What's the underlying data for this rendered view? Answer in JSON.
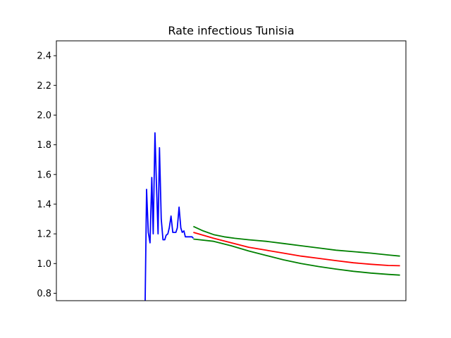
{
  "chart_data": {
    "type": "line",
    "title": "Rate infectious Tunisia",
    "xlabel": "",
    "ylabel": "",
    "xlim": [
      0,
      100
    ],
    "ylim": [
      0.75,
      2.5
    ],
    "yticks": [
      "0.8",
      "1.0",
      "1.2",
      "1.4",
      "1.6",
      "1.8",
      "2.0",
      "2.2",
      "2.4"
    ],
    "ytick_values": [
      0.8,
      1.0,
      1.2,
      1.4,
      1.6,
      1.8,
      2.0,
      2.2,
      2.4
    ],
    "x_ticks_visible": false,
    "grid": false,
    "series": [
      {
        "color": "#0000ff",
        "x": [
          25.4,
          25.8,
          26.3,
          26.8,
          27.3,
          27.7,
          28.2,
          28.6,
          29.1,
          29.5,
          30.0,
          30.5,
          31.0,
          31.4,
          31.9,
          32.3,
          32.8,
          33.3,
          33.7,
          34.2,
          34.6,
          35.1,
          35.6,
          36.0,
          36.5,
          36.9,
          37.4,
          37.8,
          38.3,
          38.8,
          39.2
        ],
        "y": [
          0.75,
          1.5,
          1.21,
          1.14,
          1.58,
          1.2,
          1.88,
          1.55,
          1.2,
          1.78,
          1.3,
          1.16,
          1.16,
          1.19,
          1.2,
          1.24,
          1.32,
          1.21,
          1.21,
          1.21,
          1.24,
          1.38,
          1.24,
          1.21,
          1.22,
          1.18,
          1.18,
          1.18,
          1.18,
          1.18,
          1.17
        ]
      },
      {
        "color": "#ff0000",
        "x": [
          39.2,
          45,
          50,
          55,
          60,
          65,
          70,
          75,
          80,
          85,
          90,
          95,
          98.3
        ],
        "y": [
          1.21,
          1.17,
          1.14,
          1.11,
          1.09,
          1.07,
          1.05,
          1.035,
          1.02,
          1.005,
          0.995,
          0.987,
          0.985
        ]
      },
      {
        "color": "#008000",
        "x": [
          39.2,
          42,
          45,
          48,
          51,
          55,
          60,
          65,
          70,
          75,
          80,
          85,
          90,
          95,
          98.3
        ],
        "y": [
          1.25,
          1.22,
          1.195,
          1.18,
          1.17,
          1.16,
          1.15,
          1.135,
          1.12,
          1.105,
          1.09,
          1.08,
          1.07,
          1.058,
          1.05
        ]
      },
      {
        "color": "#008000",
        "x": [
          39.2,
          45,
          50,
          55,
          60,
          65,
          70,
          75,
          80,
          85,
          90,
          95,
          98.3
        ],
        "y": [
          1.165,
          1.15,
          1.12,
          1.085,
          1.055,
          1.025,
          1.0,
          0.98,
          0.963,
          0.948,
          0.936,
          0.927,
          0.922
        ]
      }
    ]
  }
}
